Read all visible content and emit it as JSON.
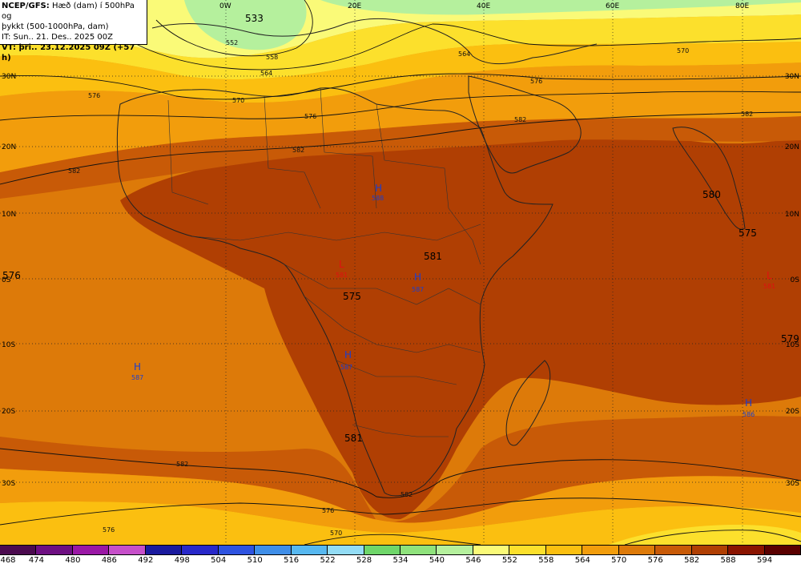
{
  "info": {
    "line1_bold": "NCEP/GFS:",
    "line1_rest": " Hæð (dam) í 500hPa og",
    "line2": "þykkt (500-1000hPa, dam)",
    "line3": "IT: Sun.. 21. Des.. 2025 00Z",
    "line4": "VT: þri.. 23.12.2025 09Z (+57 h)"
  },
  "lon_labels": [
    "0W",
    "20E",
    "40E",
    "60E",
    "80E"
  ],
  "lat_labels_left": [
    "30N",
    "20N",
    "10N",
    "0S",
    "10S",
    "20S",
    "30S"
  ],
  "lat_labels_right": [
    "30N",
    "20N",
    "10N",
    "0S",
    "10S",
    "20S",
    "30S"
  ],
  "field_numbers": [
    {
      "text": "533",
      "color": "#000000"
    },
    {
      "text": "580",
      "color": "#000000"
    },
    {
      "text": "575",
      "color": "#000000"
    },
    {
      "text": "576",
      "color": "#000000"
    },
    {
      "text": "581",
      "color": "#000000"
    },
    {
      "text": "575",
      "color": "#000000"
    },
    {
      "text": "579",
      "color": "#000000"
    },
    {
      "text": "581",
      "color": "#000000"
    }
  ],
  "centers": [
    {
      "letter": "H",
      "value": "588",
      "type": "high"
    },
    {
      "letter": "H",
      "value": "587",
      "type": "high"
    },
    {
      "letter": "H",
      "value": "587",
      "type": "high"
    },
    {
      "letter": "H",
      "value": "587",
      "type": "high"
    },
    {
      "letter": "H",
      "value": "586",
      "type": "high"
    },
    {
      "letter": "L",
      "value": "581",
      "type": "low"
    },
    {
      "letter": "L",
      "value": "581",
      "type": "low"
    }
  ],
  "contour_labels": [
    "552",
    "558",
    "564",
    "570",
    "576",
    "582",
    "564",
    "570",
    "576",
    "582",
    "576",
    "582",
    "582",
    "576",
    "576",
    "570",
    "582",
    "582"
  ],
  "colorbar": {
    "labels": [
      "468",
      "474",
      "480",
      "486",
      "492",
      "498",
      "504",
      "510",
      "516",
      "522",
      "528",
      "534",
      "540",
      "546",
      "552",
      "558",
      "564",
      "570",
      "576",
      "582",
      "588",
      "594"
    ],
    "colors": [
      "#4b0a4f",
      "#6e0f82",
      "#9a18a5",
      "#c64fc9",
      "#1a1a9e",
      "#2828c9",
      "#2e53e0",
      "#3f8ee8",
      "#57b8f0",
      "#93dcf5",
      "#6fd66a",
      "#8fe27c",
      "#b5f09d",
      "#fafa78",
      "#fce02c",
      "#fbbf10",
      "#f29d0c",
      "#dd7a09",
      "#c85a07",
      "#b03f03",
      "#8a1400",
      "#5a0000"
    ]
  },
  "field_colors": {
    "c540": "#b5f09d",
    "c546": "#fafa78",
    "c552": "#fce02c",
    "c558": "#fbbf10",
    "c564": "#f29d0c",
    "c570": "#dd7a09",
    "c576": "#c85a07",
    "c582": "#b03f03"
  }
}
